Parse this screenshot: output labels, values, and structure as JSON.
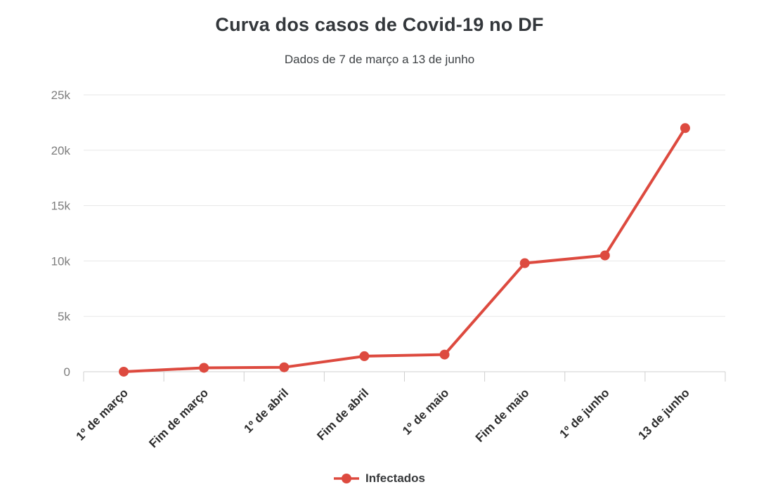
{
  "page": {
    "background": "#ffffff"
  },
  "chart_data": {
    "type": "line",
    "title": "Curva dos casos de Covid-19 no DF",
    "subtitle": "Dados de 7 de março a 13 de junho",
    "categories": [
      "1º de março",
      "Fim de março",
      "1º de abril",
      "Fim de abril",
      "1º de maio",
      "Fim de maio",
      "1º de junho",
      "13 de junho"
    ],
    "series": [
      {
        "name": "Infectados",
        "color": "#dd4a3f",
        "values": [
          1,
          350,
          400,
          1400,
          1550,
          9800,
          10500,
          22000
        ]
      }
    ],
    "xlabel": "",
    "ylabel": "",
    "ylim": [
      0,
      25000
    ],
    "yticks": [
      {
        "value": 0,
        "label": "0"
      },
      {
        "value": 5000,
        "label": "5k"
      },
      {
        "value": 10000,
        "label": "10k"
      },
      {
        "value": 15000,
        "label": "15k"
      },
      {
        "value": 20000,
        "label": "20k"
      },
      {
        "value": 25000,
        "label": "25k"
      }
    ],
    "grid": "horizontal",
    "legend_position": "bottom",
    "x_label_rotation": -45
  },
  "legend": {
    "label": "Infectados"
  },
  "colors": {
    "series_red": "#dd4a3f",
    "title_text": "#33373b",
    "subtitle_text": "#3e4245",
    "axis_label": "#7d7d7d",
    "category_label": "#2c2c2c",
    "gridline": "#e7e7e7",
    "axis_line": "#cfcfcf",
    "legend_text": "#37393b"
  }
}
